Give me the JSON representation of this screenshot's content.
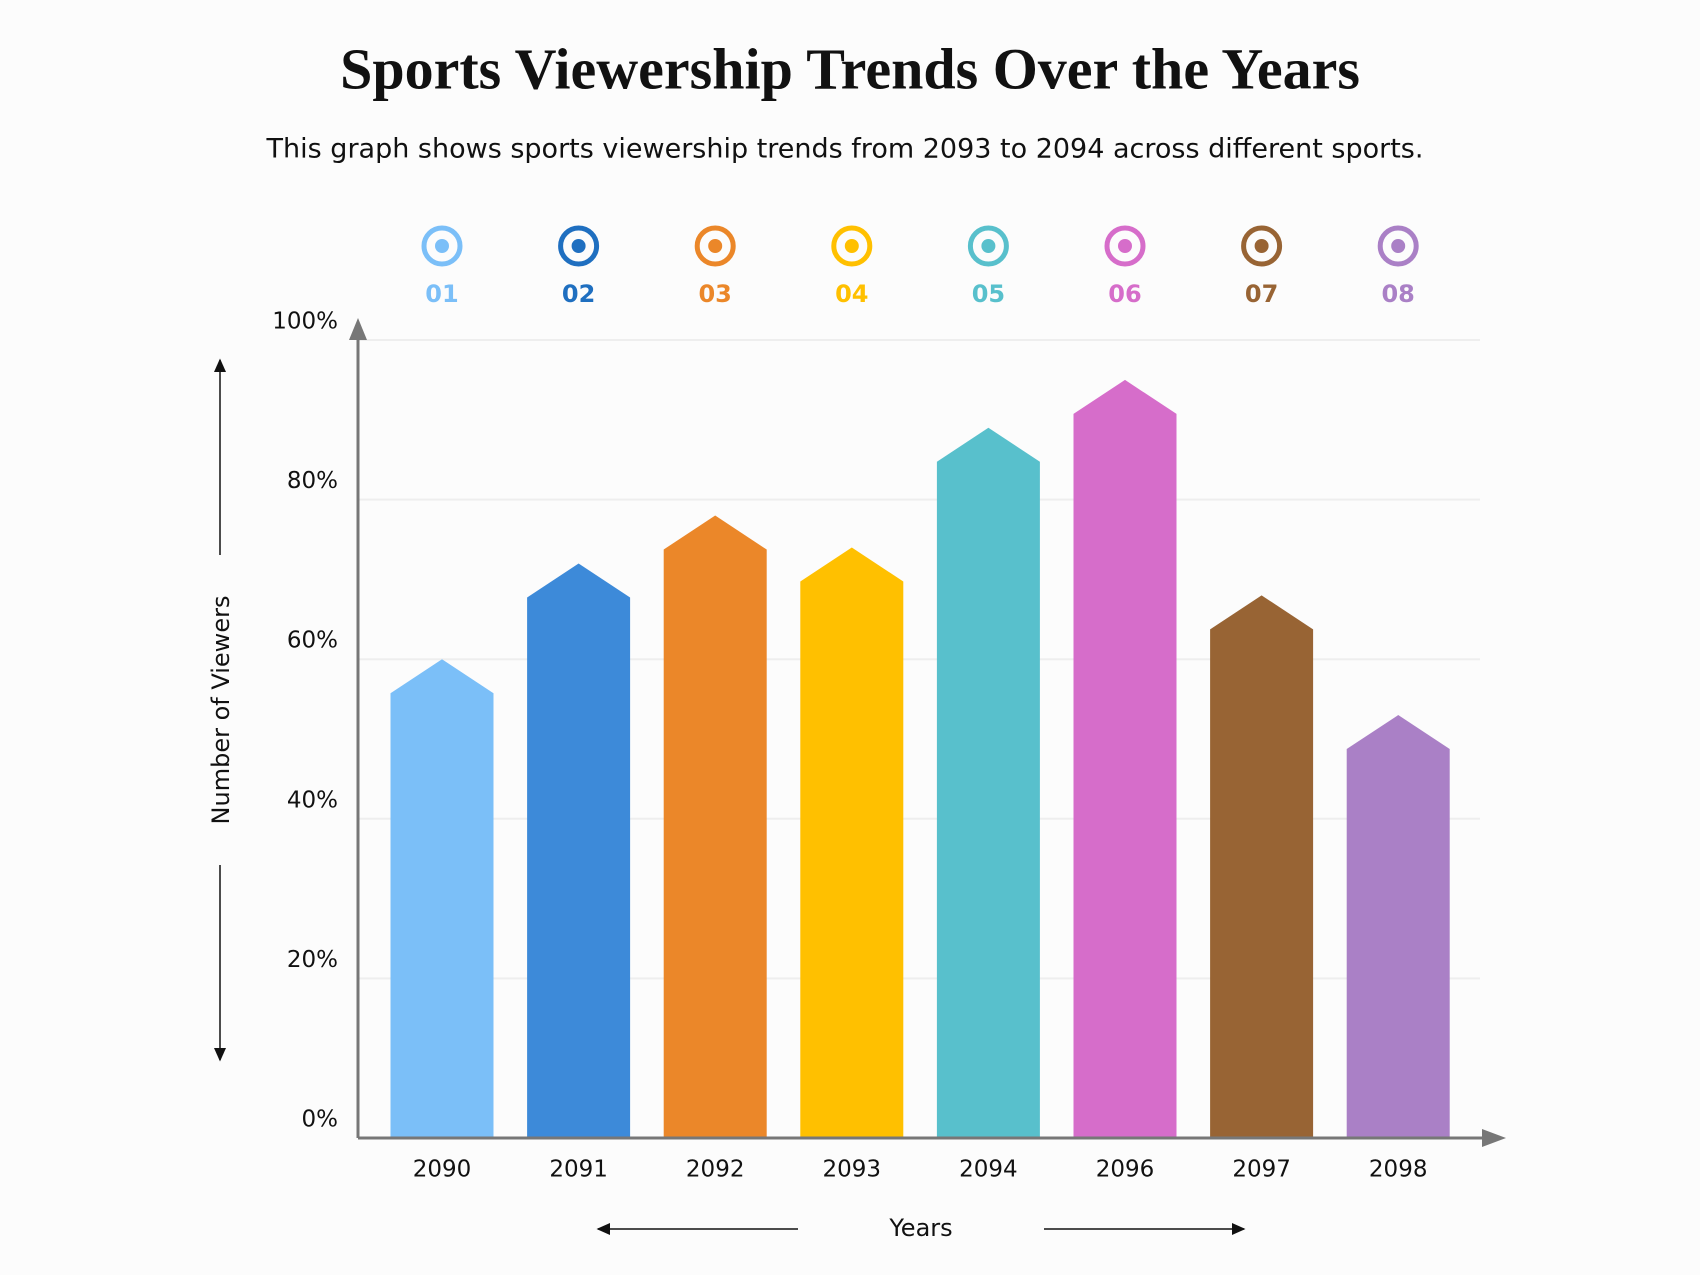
{
  "chart_data": {
    "type": "bar",
    "title": "Sports Viewership Trends Over the Years",
    "subtitle": "This graph shows sports viewership trends from 2093 to 2094 across different sports.",
    "categories": [
      "2090",
      "2091",
      "2092",
      "2093",
      "2094",
      "2096",
      "2097",
      "2098"
    ],
    "values": [
      60,
      72,
      78,
      74,
      89,
      95,
      68,
      53
    ],
    "colors": [
      "#7bbff8",
      "#3d8ad9",
      "#eb8729",
      "#ffc000",
      "#58c0cc",
      "#d66dca",
      "#986434",
      "#aa80c6"
    ],
    "icon_labels": [
      "01",
      "02",
      "03",
      "04",
      "05",
      "06",
      "07",
      "08"
    ],
    "icon_label_colors": [
      "#7bbff8",
      "#1f6fc0",
      "#eb8729",
      "#ffc000",
      "#58c0cc",
      "#d66dca",
      "#986434",
      "#aa80c6"
    ],
    "ylim": [
      0,
      100
    ],
    "yticks": [
      {
        "value": 0,
        "label": "0%"
      },
      {
        "value": 20,
        "label": "20%"
      },
      {
        "value": 40,
        "label": "40%"
      },
      {
        "value": 60,
        "label": "60%"
      },
      {
        "value": 80,
        "label": "80%"
      },
      {
        "value": 100,
        "label": "100%"
      }
    ],
    "y_label": "Number of Viewers",
    "x_label": "Years",
    "grid": true
  }
}
